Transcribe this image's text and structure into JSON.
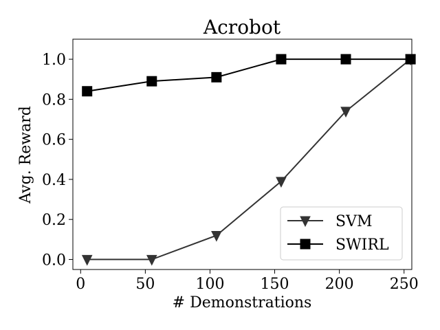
{
  "chart_data": {
    "type": "line",
    "title": "Acrobot",
    "xlabel": "# Demonstrations",
    "ylabel": "Avg. Reward",
    "xlim": [
      -6,
      256
    ],
    "ylim": [
      -0.05,
      1.1
    ],
    "xticks": [
      0,
      50,
      100,
      150,
      200,
      250
    ],
    "xtick_labels": [
      "0",
      "50",
      "100",
      "150",
      "200",
      "250"
    ],
    "yticks": [
      0.0,
      0.2,
      0.4,
      0.6,
      0.8,
      1.0
    ],
    "ytick_labels": [
      "0.0",
      "0.2",
      "0.4",
      "0.6",
      "0.8",
      "1.0"
    ],
    "grid": false,
    "legend_position": "lower-right",
    "series": [
      {
        "name": "SVM",
        "marker": "triangle-down",
        "color": "#333333",
        "x": [
          5,
          55,
          105,
          155,
          205,
          255
        ],
        "y": [
          0.0,
          0.0,
          0.12,
          0.39,
          0.74,
          1.0
        ]
      },
      {
        "name": "SWIRL",
        "marker": "square",
        "color": "#000000",
        "x": [
          5,
          55,
          105,
          155,
          205,
          255
        ],
        "y": [
          0.84,
          0.89,
          0.91,
          1.0,
          1.0,
          1.0
        ]
      }
    ]
  }
}
